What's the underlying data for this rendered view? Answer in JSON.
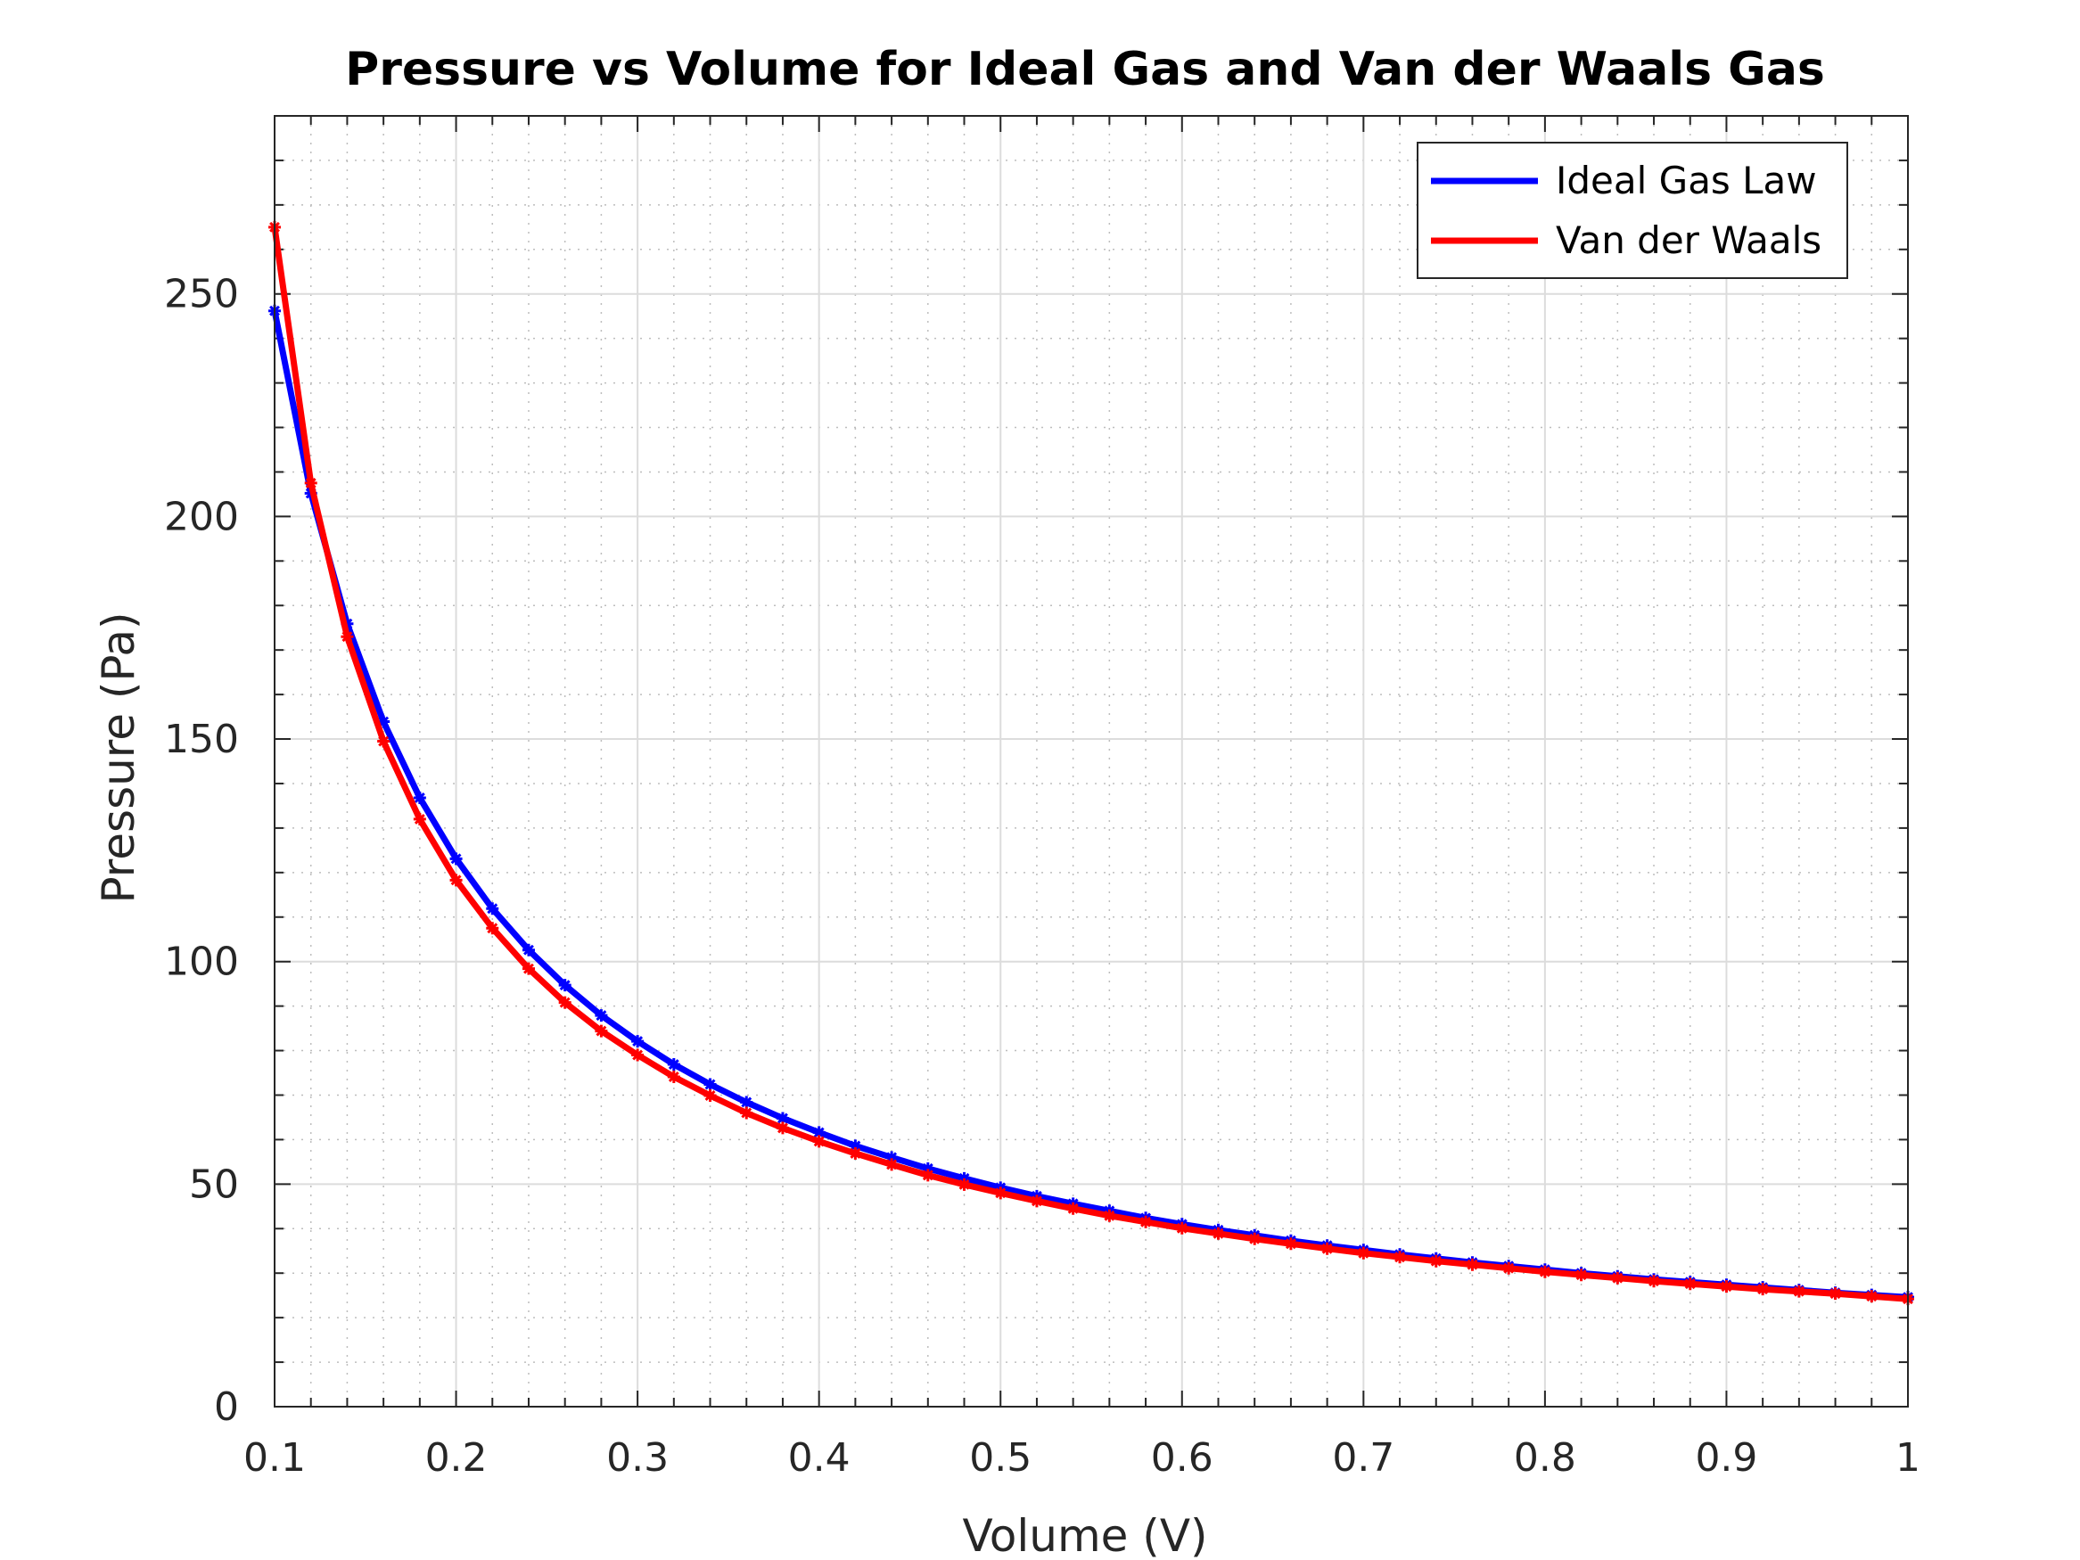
{
  "chart_data": {
    "type": "line",
    "title": "Pressure vs Volume for Ideal Gas and Van der Waals Gas",
    "xlabel": "Volume (V)",
    "ylabel": "Pressure (Pa)",
    "xlim": [
      0.1,
      1
    ],
    "ylim": [
      0,
      290
    ],
    "x_ticks": [
      "0.1",
      "0.2",
      "0.3",
      "0.4",
      "0.5",
      "0.6",
      "0.7",
      "0.8",
      "0.9",
      "1"
    ],
    "y_ticks": [
      "0",
      "50",
      "100",
      "150",
      "200",
      "250"
    ],
    "grid": true,
    "minor_grid": true,
    "legend_position": "top-right",
    "x": [
      0.1,
      0.12,
      0.14,
      0.16,
      0.18,
      0.2,
      0.22,
      0.24,
      0.26,
      0.28,
      0.3,
      0.32,
      0.34,
      0.36,
      0.38,
      0.4,
      0.42,
      0.44,
      0.46,
      0.48,
      0.5,
      0.52,
      0.54,
      0.56,
      0.58,
      0.6,
      0.62,
      0.64,
      0.66,
      0.68,
      0.7,
      0.72,
      0.74,
      0.76,
      0.78,
      0.8,
      0.82,
      0.84,
      0.86,
      0.88,
      0.9,
      0.92,
      0.94,
      0.96,
      0.98,
      1.0
    ],
    "series": [
      {
        "name": "Ideal Gas Law",
        "color": "#0000ff",
        "values": [
          246.2,
          205.2,
          175.9,
          153.9,
          136.8,
          123.1,
          111.9,
          102.6,
          94.7,
          87.9,
          82.1,
          76.9,
          72.4,
          68.4,
          64.8,
          61.6,
          58.6,
          56.0,
          53.5,
          51.3,
          49.2,
          47.3,
          45.6,
          44.0,
          42.4,
          41.0,
          39.7,
          38.5,
          37.3,
          36.2,
          35.2,
          34.2,
          33.3,
          32.4,
          31.6,
          30.8,
          30.0,
          29.3,
          28.6,
          28.0,
          27.4,
          26.8,
          26.2,
          25.6,
          25.1,
          24.6
        ]
      },
      {
        "name": "Van der Waals",
        "color": "#ff0000",
        "values": [
          265.0,
          207.5,
          173.0,
          149.5,
          132.0,
          118.3,
          107.5,
          98.4,
          90.8,
          84.4,
          79.0,
          74.1,
          69.9,
          66.0,
          62.6,
          59.6,
          56.9,
          54.4,
          52.0,
          49.9,
          48.0,
          46.2,
          44.5,
          42.9,
          41.5,
          40.1,
          38.9,
          37.7,
          36.6,
          35.5,
          34.5,
          33.6,
          32.7,
          31.9,
          31.1,
          30.3,
          29.6,
          28.9,
          28.2,
          27.6,
          27.0,
          26.4,
          25.9,
          25.4,
          24.8,
          24.2
        ]
      }
    ]
  }
}
